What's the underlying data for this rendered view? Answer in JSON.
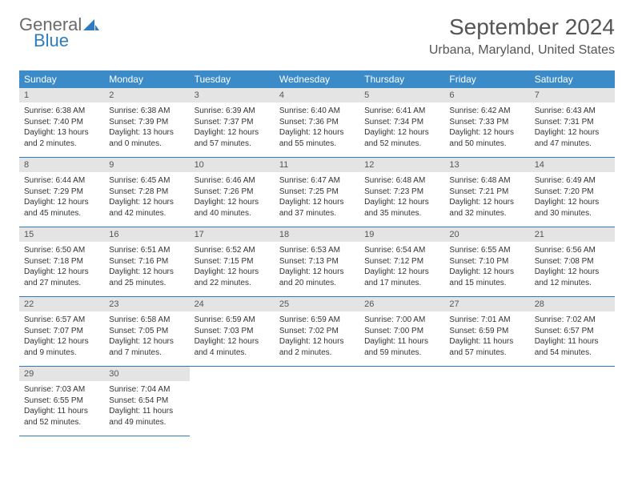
{
  "brand": {
    "part1": "General",
    "part2": "Blue"
  },
  "title": "September 2024",
  "location": "Urbana, Maryland, United States",
  "colors": {
    "header_bg": "#3b8bc8",
    "header_text": "#ffffff",
    "daynum_bg": "#e4e4e4",
    "rule": "#2f7bbf",
    "text": "#333333",
    "title_text": "#555555",
    "logo_gray": "#6a6a6a",
    "logo_blue": "#2f7bbf"
  },
  "weekdays": [
    "Sunday",
    "Monday",
    "Tuesday",
    "Wednesday",
    "Thursday",
    "Friday",
    "Saturday"
  ],
  "weeks": [
    [
      {
        "n": "1",
        "sunrise": "Sunrise: 6:38 AM",
        "sunset": "Sunset: 7:40 PM",
        "daylight": "Daylight: 13 hours and 2 minutes."
      },
      {
        "n": "2",
        "sunrise": "Sunrise: 6:38 AM",
        "sunset": "Sunset: 7:39 PM",
        "daylight": "Daylight: 13 hours and 0 minutes."
      },
      {
        "n": "3",
        "sunrise": "Sunrise: 6:39 AM",
        "sunset": "Sunset: 7:37 PM",
        "daylight": "Daylight: 12 hours and 57 minutes."
      },
      {
        "n": "4",
        "sunrise": "Sunrise: 6:40 AM",
        "sunset": "Sunset: 7:36 PM",
        "daylight": "Daylight: 12 hours and 55 minutes."
      },
      {
        "n": "5",
        "sunrise": "Sunrise: 6:41 AM",
        "sunset": "Sunset: 7:34 PM",
        "daylight": "Daylight: 12 hours and 52 minutes."
      },
      {
        "n": "6",
        "sunrise": "Sunrise: 6:42 AM",
        "sunset": "Sunset: 7:33 PM",
        "daylight": "Daylight: 12 hours and 50 minutes."
      },
      {
        "n": "7",
        "sunrise": "Sunrise: 6:43 AM",
        "sunset": "Sunset: 7:31 PM",
        "daylight": "Daylight: 12 hours and 47 minutes."
      }
    ],
    [
      {
        "n": "8",
        "sunrise": "Sunrise: 6:44 AM",
        "sunset": "Sunset: 7:29 PM",
        "daylight": "Daylight: 12 hours and 45 minutes."
      },
      {
        "n": "9",
        "sunrise": "Sunrise: 6:45 AM",
        "sunset": "Sunset: 7:28 PM",
        "daylight": "Daylight: 12 hours and 42 minutes."
      },
      {
        "n": "10",
        "sunrise": "Sunrise: 6:46 AM",
        "sunset": "Sunset: 7:26 PM",
        "daylight": "Daylight: 12 hours and 40 minutes."
      },
      {
        "n": "11",
        "sunrise": "Sunrise: 6:47 AM",
        "sunset": "Sunset: 7:25 PM",
        "daylight": "Daylight: 12 hours and 37 minutes."
      },
      {
        "n": "12",
        "sunrise": "Sunrise: 6:48 AM",
        "sunset": "Sunset: 7:23 PM",
        "daylight": "Daylight: 12 hours and 35 minutes."
      },
      {
        "n": "13",
        "sunrise": "Sunrise: 6:48 AM",
        "sunset": "Sunset: 7:21 PM",
        "daylight": "Daylight: 12 hours and 32 minutes."
      },
      {
        "n": "14",
        "sunrise": "Sunrise: 6:49 AM",
        "sunset": "Sunset: 7:20 PM",
        "daylight": "Daylight: 12 hours and 30 minutes."
      }
    ],
    [
      {
        "n": "15",
        "sunrise": "Sunrise: 6:50 AM",
        "sunset": "Sunset: 7:18 PM",
        "daylight": "Daylight: 12 hours and 27 minutes."
      },
      {
        "n": "16",
        "sunrise": "Sunrise: 6:51 AM",
        "sunset": "Sunset: 7:16 PM",
        "daylight": "Daylight: 12 hours and 25 minutes."
      },
      {
        "n": "17",
        "sunrise": "Sunrise: 6:52 AM",
        "sunset": "Sunset: 7:15 PM",
        "daylight": "Daylight: 12 hours and 22 minutes."
      },
      {
        "n": "18",
        "sunrise": "Sunrise: 6:53 AM",
        "sunset": "Sunset: 7:13 PM",
        "daylight": "Daylight: 12 hours and 20 minutes."
      },
      {
        "n": "19",
        "sunrise": "Sunrise: 6:54 AM",
        "sunset": "Sunset: 7:12 PM",
        "daylight": "Daylight: 12 hours and 17 minutes."
      },
      {
        "n": "20",
        "sunrise": "Sunrise: 6:55 AM",
        "sunset": "Sunset: 7:10 PM",
        "daylight": "Daylight: 12 hours and 15 minutes."
      },
      {
        "n": "21",
        "sunrise": "Sunrise: 6:56 AM",
        "sunset": "Sunset: 7:08 PM",
        "daylight": "Daylight: 12 hours and 12 minutes."
      }
    ],
    [
      {
        "n": "22",
        "sunrise": "Sunrise: 6:57 AM",
        "sunset": "Sunset: 7:07 PM",
        "daylight": "Daylight: 12 hours and 9 minutes."
      },
      {
        "n": "23",
        "sunrise": "Sunrise: 6:58 AM",
        "sunset": "Sunset: 7:05 PM",
        "daylight": "Daylight: 12 hours and 7 minutes."
      },
      {
        "n": "24",
        "sunrise": "Sunrise: 6:59 AM",
        "sunset": "Sunset: 7:03 PM",
        "daylight": "Daylight: 12 hours and 4 minutes."
      },
      {
        "n": "25",
        "sunrise": "Sunrise: 6:59 AM",
        "sunset": "Sunset: 7:02 PM",
        "daylight": "Daylight: 12 hours and 2 minutes."
      },
      {
        "n": "26",
        "sunrise": "Sunrise: 7:00 AM",
        "sunset": "Sunset: 7:00 PM",
        "daylight": "Daylight: 11 hours and 59 minutes."
      },
      {
        "n": "27",
        "sunrise": "Sunrise: 7:01 AM",
        "sunset": "Sunset: 6:59 PM",
        "daylight": "Daylight: 11 hours and 57 minutes."
      },
      {
        "n": "28",
        "sunrise": "Sunrise: 7:02 AM",
        "sunset": "Sunset: 6:57 PM",
        "daylight": "Daylight: 11 hours and 54 minutes."
      }
    ],
    [
      {
        "n": "29",
        "sunrise": "Sunrise: 7:03 AM",
        "sunset": "Sunset: 6:55 PM",
        "daylight": "Daylight: 11 hours and 52 minutes."
      },
      {
        "n": "30",
        "sunrise": "Sunrise: 7:04 AM",
        "sunset": "Sunset: 6:54 PM",
        "daylight": "Daylight: 11 hours and 49 minutes."
      },
      null,
      null,
      null,
      null,
      null
    ]
  ]
}
